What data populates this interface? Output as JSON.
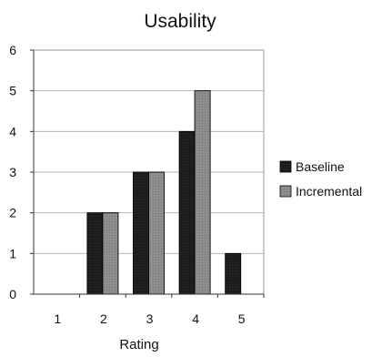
{
  "chart_data": {
    "type": "bar",
    "title": "Usability",
    "xlabel": "Rating",
    "ylabel": "",
    "categories": [
      "1",
      "2",
      "3",
      "4",
      "5"
    ],
    "ylim": [
      0,
      6
    ],
    "yticks": [
      "0",
      "1",
      "2",
      "3",
      "4",
      "5",
      "6"
    ],
    "grid": true,
    "legend_position": "right",
    "series": [
      {
        "name": "Baseline",
        "values": [
          0,
          2,
          3,
          4,
          1
        ],
        "color": "#1a1a1a"
      },
      {
        "name": "Incremental",
        "values": [
          0,
          2,
          3,
          5,
          0
        ],
        "color": "#8c8c8c"
      }
    ]
  }
}
